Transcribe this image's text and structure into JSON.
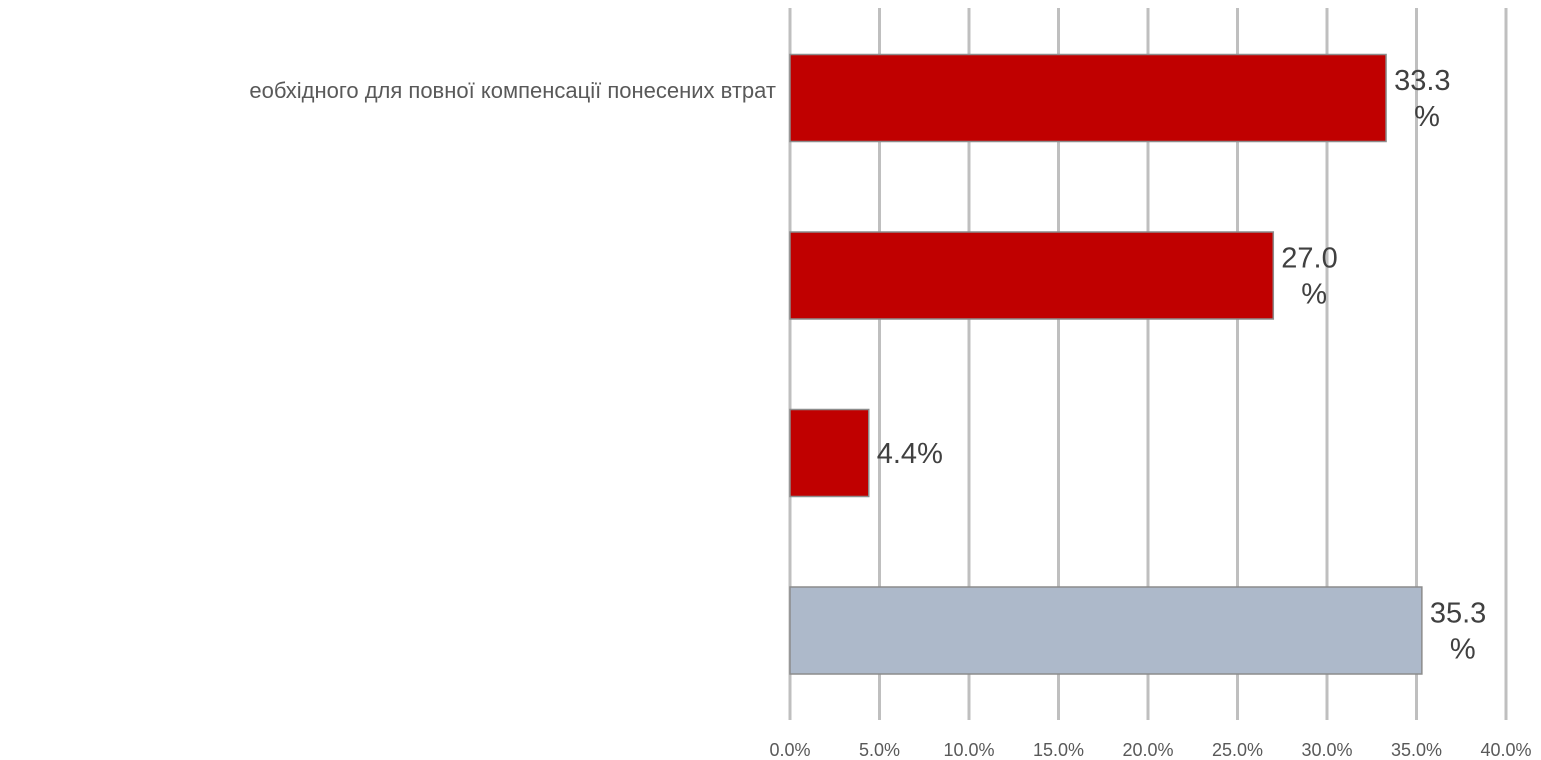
{
  "chart_data": {
    "type": "bar",
    "orientation": "horizontal",
    "categories": [
      "еобхідного для повної компенсації понесених втрат",
      "",
      "",
      ""
    ],
    "values": [
      33.3,
      27.0,
      4.4,
      35.3
    ],
    "value_labels": [
      "33.3\n%",
      "27.0\n%",
      "4.4%",
      "35.3\n%"
    ],
    "bar_colors": [
      "#c00000",
      "#c00000",
      "#c00000",
      "#adb9ca"
    ],
    "xlim": [
      0,
      40
    ],
    "xticks": [
      0,
      5,
      10,
      15,
      20,
      25,
      30,
      35,
      40
    ],
    "xtick_labels": [
      "0.0%",
      "5.0%",
      "10.0%",
      "15.0%",
      "20.0%",
      "25.0%",
      "30.0%",
      "35.0%",
      "40.0%"
    ],
    "grid": "vertical",
    "title": "",
    "xlabel": "",
    "ylabel": ""
  }
}
